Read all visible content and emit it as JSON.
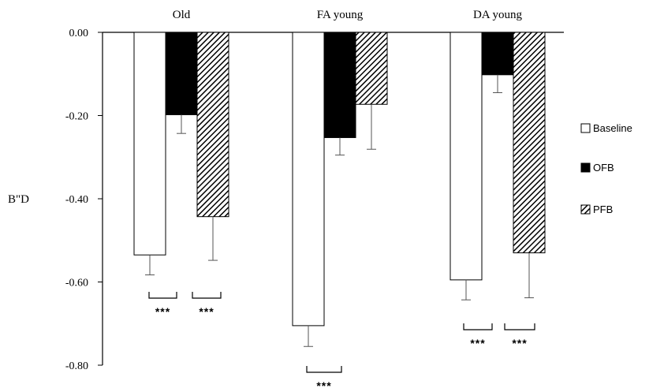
{
  "chart_data": {
    "type": "bar",
    "title": "",
    "xlabel": "",
    "ylabel": "B\"D",
    "ylim": [
      -0.8,
      0.0
    ],
    "yticks": [
      "0.00",
      "-0.20",
      "-0.40",
      "-0.60",
      "-0.80"
    ],
    "ytick_values": [
      0.0,
      -0.2,
      -0.4,
      -0.6,
      -0.8
    ],
    "categories": [
      "Old",
      "FA young",
      "DA young"
    ],
    "series": [
      {
        "name": "Baseline",
        "values": [
          -0.535,
          -0.705,
          -0.595
        ],
        "errors": [
          0.048,
          0.05,
          0.048
        ],
        "fill": "#ffffff"
      },
      {
        "name": "OFB",
        "values": [
          -0.198,
          -0.253,
          -0.102
        ],
        "errors": [
          0.045,
          0.042,
          0.043
        ],
        "fill": "#000000"
      },
      {
        "name": "PFB",
        "values": [
          -0.443,
          -0.173,
          -0.53
        ],
        "errors": [
          0.105,
          0.108,
          0.108
        ],
        "fill": "hatch"
      }
    ],
    "legend": {
      "placement": "right",
      "entries": [
        "Baseline",
        "OFB",
        "PFB"
      ]
    },
    "grid": false,
    "significance": [
      {
        "group": "Old",
        "label": "***"
      },
      {
        "group": "Old",
        "label": "***"
      },
      {
        "group": "FA young",
        "label": "***"
      },
      {
        "group": "DA young",
        "label": "***"
      },
      {
        "group": "DA young",
        "label": "***"
      }
    ]
  }
}
